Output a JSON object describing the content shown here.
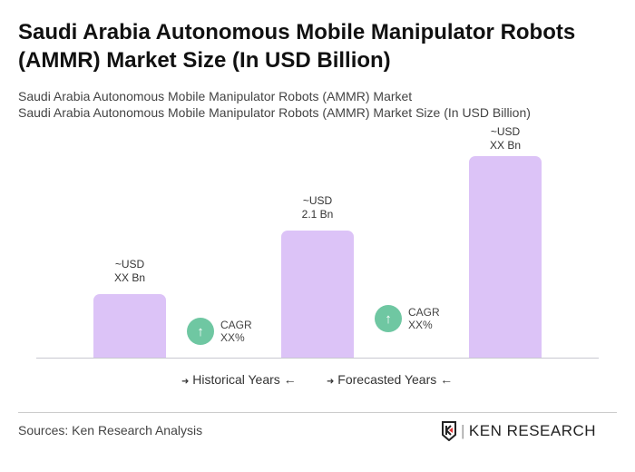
{
  "title": "Saudi Arabia Autonomous Mobile Manipulator Robots (AMMR) Market Size (In USD Billion)",
  "subtitle1": "Saudi Arabia Autonomous Mobile Manipulator Robots (AMMR) Market",
  "subtitle2": "Saudi Arabia Autonomous Mobile Manipulator Robots (AMMR) Market Size (In USD Billion)",
  "chart_data": {
    "type": "bar",
    "categories": [
      "",
      "",
      ""
    ],
    "values": [
      null,
      2.1,
      null
    ],
    "data_labels": [
      [
        "~USD",
        "XX Bn"
      ],
      [
        "~USD",
        "2.1 Bn"
      ],
      [
        "~USD",
        "XX Bn"
      ]
    ],
    "bar_color": "#dcc3f7",
    "annotations": [
      {
        "label": "CAGR",
        "value": "XX%"
      },
      {
        "label": "CAGR",
        "value": "XX%"
      }
    ],
    "legend": [
      "Historical Years",
      "Forecasted Years"
    ],
    "grid": false
  },
  "icons": {
    "cagr": "arrow-up-icon",
    "legend_left": "arrow-right-icon",
    "legend_right": "arrow-left-icon"
  },
  "legend_arrows": {
    "right": "➜",
    "left": "←"
  },
  "source": "Sources: Ken Research Analysis",
  "logo_text": "KEN RESEARCH"
}
